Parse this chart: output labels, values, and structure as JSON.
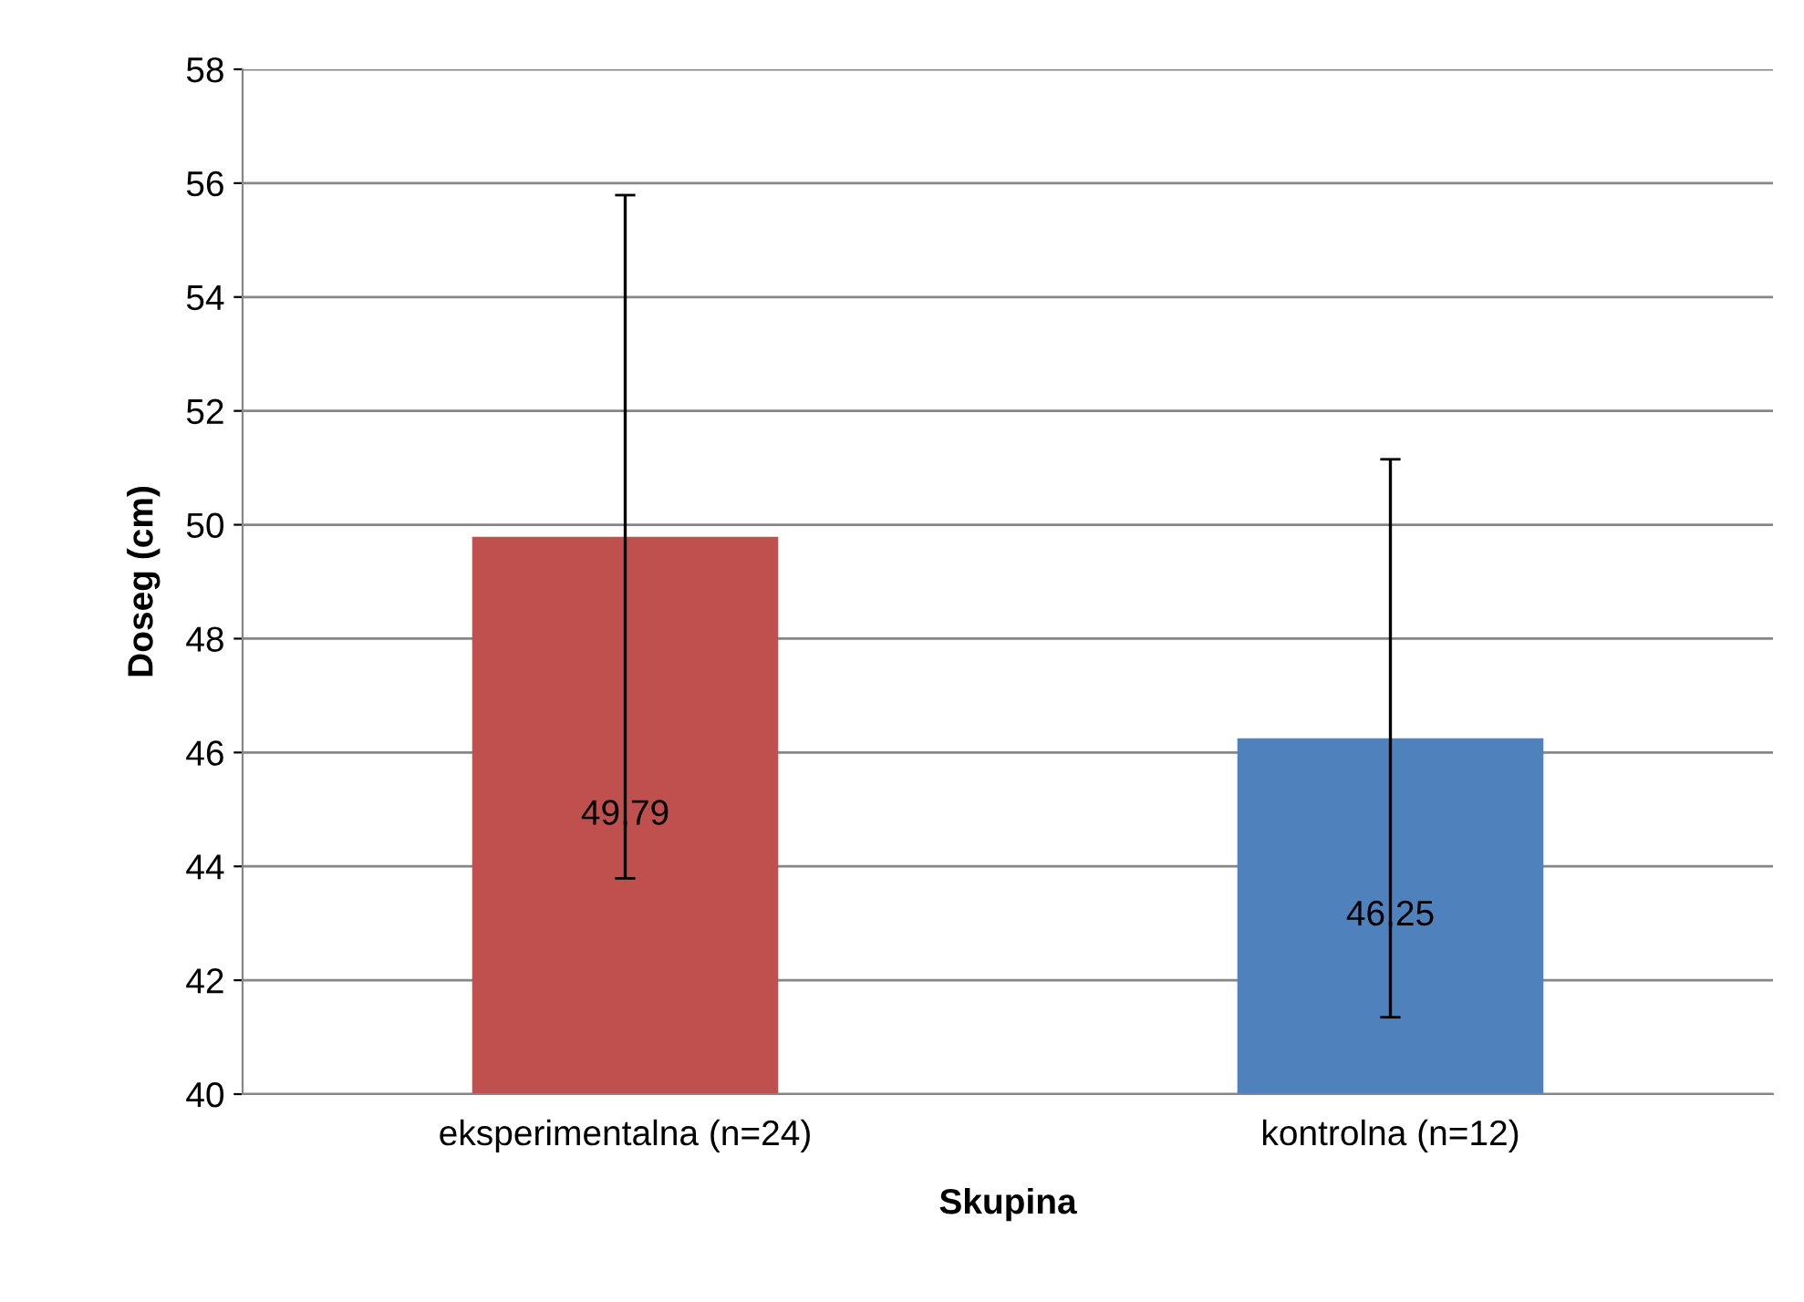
{
  "chart_data": {
    "type": "bar",
    "xlabel": "Skupina",
    "ylabel": "Doseg (cm)",
    "categories": [
      "eksperimentalna (n=24)",
      "kontrolna (n=12)"
    ],
    "values": [
      49.79,
      46.25
    ],
    "colors": [
      "#c0504d",
      "#4f81bd"
    ],
    "errors": [
      6.0,
      4.9
    ],
    "value_labels": [
      "49,79",
      "46,25"
    ],
    "ylim": [
      40,
      58
    ],
    "yticks": [
      40,
      42,
      44,
      46,
      48,
      50,
      52,
      54,
      56,
      58
    ],
    "grid": "y",
    "legend": false
  }
}
